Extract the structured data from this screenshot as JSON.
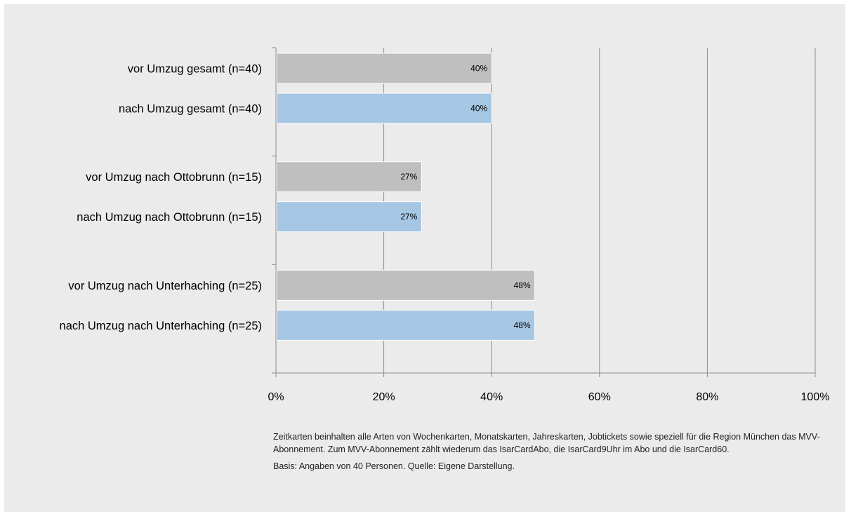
{
  "chart_data": {
    "type": "bar",
    "orientation": "horizontal",
    "title": "",
    "xlabel": "",
    "ylabel": "",
    "xlim": [
      0,
      100
    ],
    "x_ticks": [
      "0%",
      "20%",
      "40%",
      "60%",
      "80%",
      "100%"
    ],
    "grid": true,
    "groups": [
      {
        "bars": [
          {
            "category": "vor Umzug gesamt (n=40)",
            "value": 40,
            "label": "40%",
            "color": "#bfbfbf"
          },
          {
            "category": "nach Umzug gesamt (n=40)",
            "value": 40,
            "label": "40%",
            "color": "#a6c7e3"
          }
        ]
      },
      {
        "bars": [
          {
            "category": "vor Umzug nach Ottobrunn (n=15)",
            "value": 27,
            "label": "27%",
            "color": "#bfbfbf"
          },
          {
            "category": "nach Umzug nach Ottobrunn (n=15)",
            "value": 27,
            "label": "27%",
            "color": "#a6c7e3"
          }
        ]
      },
      {
        "bars": [
          {
            "category": "vor Umzug nach Unterhaching (n=25)",
            "value": 48,
            "label": "48%",
            "color": "#bfbfbf"
          },
          {
            "category": "nach Umzug nach Unterhaching (n=25)",
            "value": 48,
            "label": "48%",
            "color": "#a6c7e3"
          }
        ]
      }
    ]
  },
  "footnote": {
    "text": "Zeitkarten beinhalten alle Arten von Wochenkarten, Monatskarten, Jahreskarten, Jobtickets sowie speziell für die Region München das MVV-Abonnement. Zum MVV-Abonnement zählt wiederum das IsarCardAbo, die IsarCard9Uhr im Abo und die IsarCard60.",
    "basis": "Basis: Angaben von 40 Personen. Quelle: Eigene Darstellung."
  },
  "colors": {
    "background": "#ebebeb",
    "gridline": "#8c8c8c",
    "bar_before": "#bfbfbf",
    "bar_after": "#a6c7e3",
    "text": "#000000"
  }
}
